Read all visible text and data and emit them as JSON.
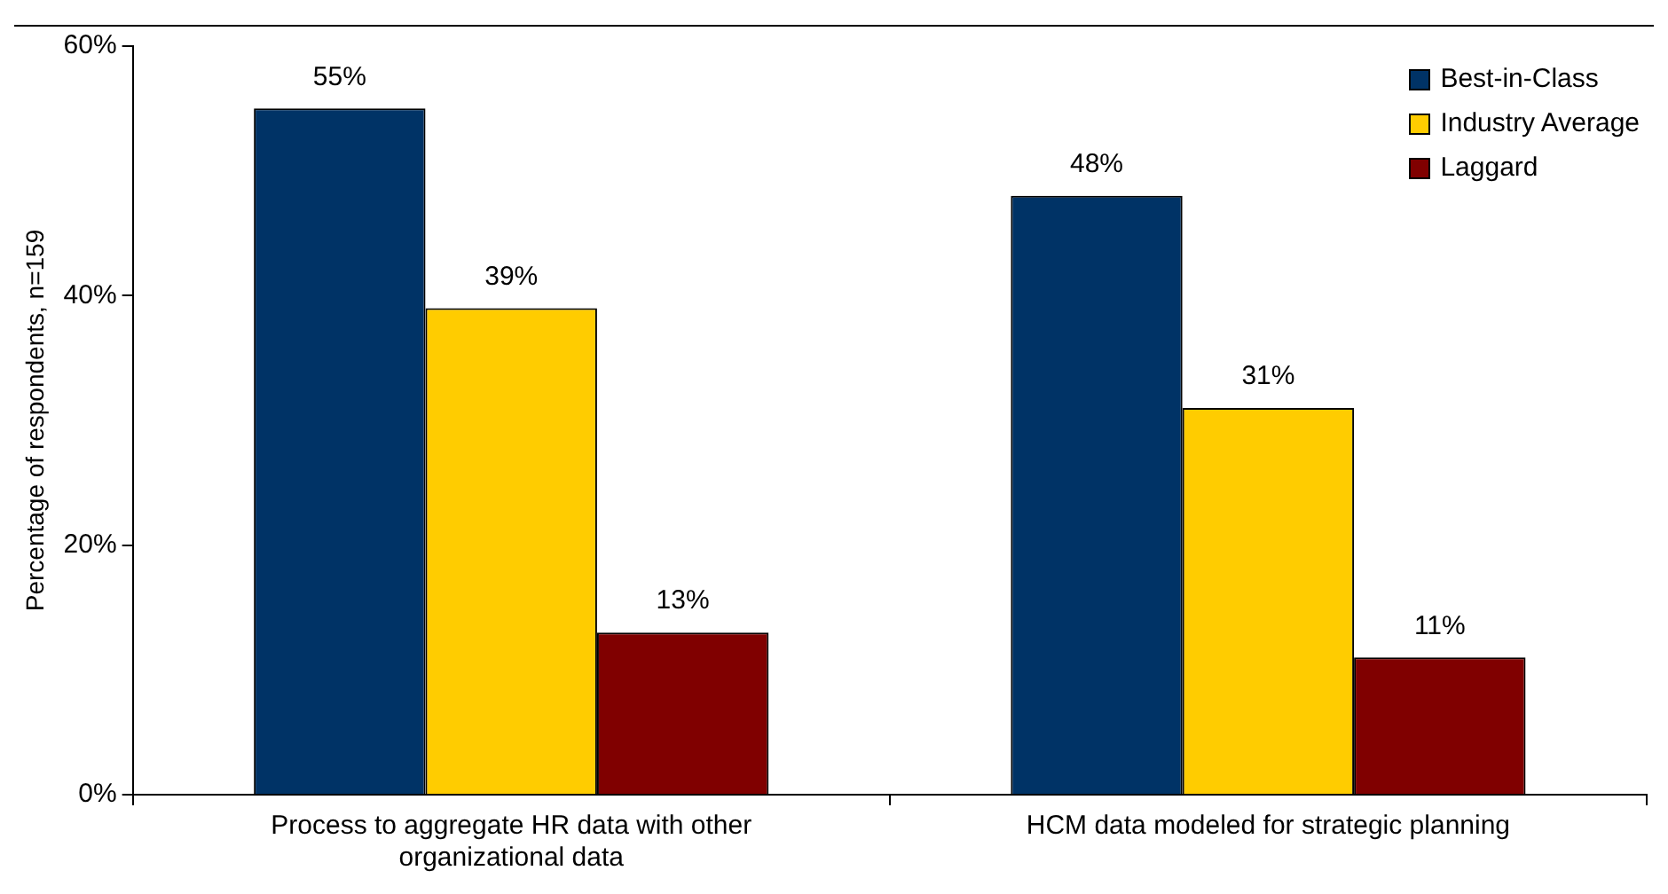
{
  "chart_data": {
    "type": "bar",
    "ylabel": "Percentage of respondents, n=159",
    "categories": [
      "Process to aggregate HR data with other organizational data",
      "HCM data modeled for strategic planning"
    ],
    "series": [
      {
        "name": "Best-in-Class",
        "color": "#003366",
        "values": [
          55,
          48
        ],
        "value_labels": [
          "55%",
          "48%"
        ]
      },
      {
        "name": "Industry Average",
        "color": "#ffcc00",
        "values": [
          39,
          31
        ],
        "value_labels": [
          "39%",
          "31%"
        ]
      },
      {
        "name": "Laggard",
        "color": "#800000",
        "values": [
          13,
          11
        ],
        "value_labels": [
          "13%",
          "11%"
        ]
      }
    ],
    "ylim": [
      0,
      60
    ],
    "yticks": [
      {
        "value": 0,
        "label": "0%"
      },
      {
        "value": 20,
        "label": "20%"
      },
      {
        "value": 40,
        "label": "40%"
      },
      {
        "value": 60,
        "label": "60%"
      }
    ],
    "grid": false,
    "legend": "top right"
  }
}
